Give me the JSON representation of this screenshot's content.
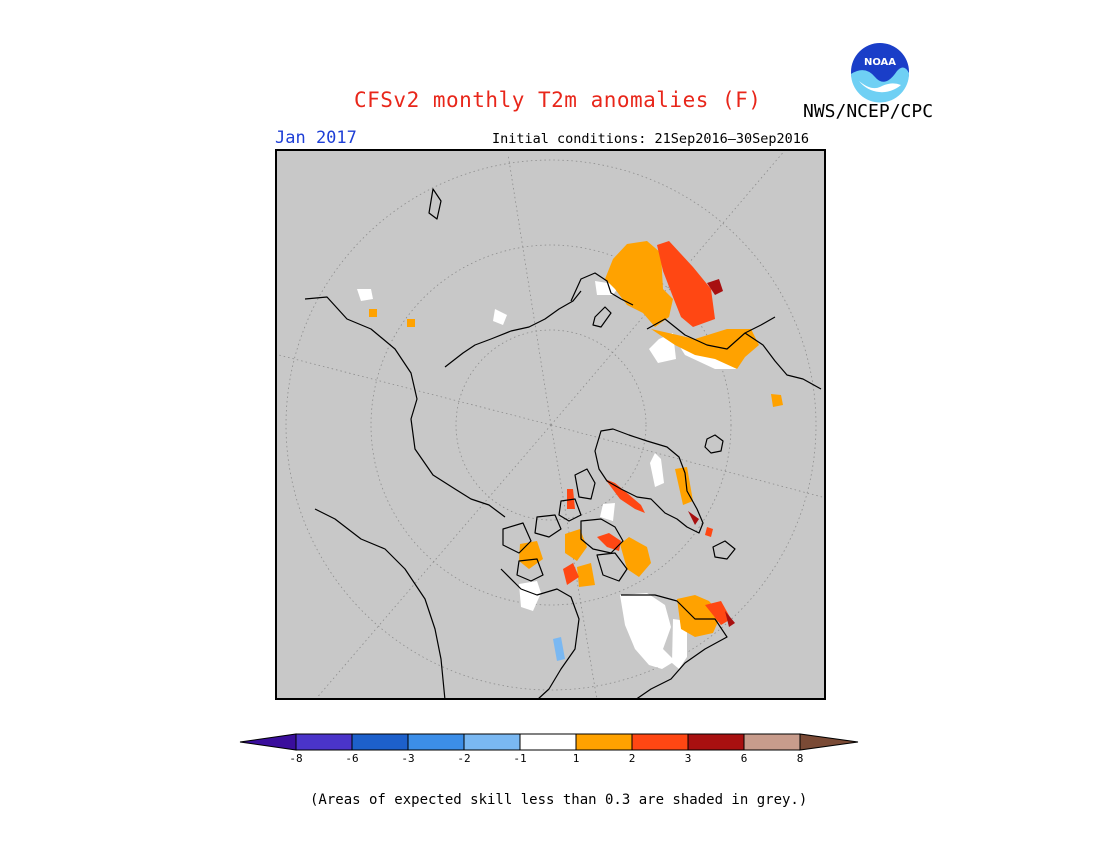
{
  "header": {
    "title": "CFSv2 monthly T2m anomalies (F)",
    "agency": "NWS/NCEP/CPC",
    "logo_text": "NOAA",
    "month": "Jan 2017",
    "initial_conditions": "Initial conditions: 21Sep2016–30Sep2016"
  },
  "colors": {
    "title": "#e8261a",
    "month": "#1e3fd6",
    "map_background": "#c8c8c8",
    "coast": "#000000",
    "grid": "#8c8c8c"
  },
  "colorbar": {
    "underflow_color": "#3a0e9c",
    "overflow_color": "#7a4a35",
    "bins": [
      {
        "color": "#4a34c9"
      },
      {
        "color": "#1d60cb"
      },
      {
        "color": "#3c8ee8"
      },
      {
        "color": "#7ab8f2"
      },
      {
        "color": "#ffffff"
      },
      {
        "color": "#ffa200"
      },
      {
        "color": "#ff4713"
      },
      {
        "color": "#a81010"
      },
      {
        "color": "#c89c8c"
      }
    ],
    "tick_labels": [
      "-8",
      "-6",
      "-3",
      "-2",
      "-1",
      "1",
      "2",
      "3",
      "6",
      "8"
    ]
  },
  "footnote": "(Areas of expected skill less than 0.3 are shaded in grey.)"
}
